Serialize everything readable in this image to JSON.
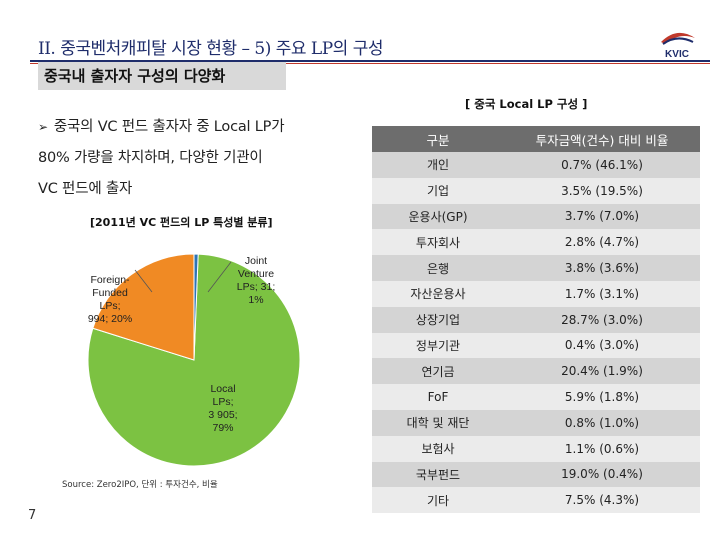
{
  "header": {
    "title": "II. 중국벤처캐피탈 시장 현황 – 5) 주요 LP의 구성",
    "logo_text": "KVIC",
    "subtitle": "중국내 출자자 구성의 다양화"
  },
  "bullet": {
    "line1": "중국의 VC 펀드 출자자 중 Local LP가",
    "line2": "80% 가량을 차지하며, 다양한 기관이",
    "line3": "VC 펀드에 출자"
  },
  "chart_data": {
    "type": "pie",
    "title": "[2011년 VC 펀드의 LP 특성별 분류]",
    "slices": [
      {
        "name": "Local LPs",
        "value": 3905,
        "percent": 79,
        "label_lines": [
          "Local",
          "LPs;",
          "3 905;",
          "79%"
        ],
        "color": "#7cc242"
      },
      {
        "name": "Foreign-Funded LPs",
        "value": 994,
        "percent": 20,
        "label_lines": [
          "Foreign-",
          "Funded",
          "LPs;",
          "994; 20%"
        ],
        "color": "#f08a24"
      },
      {
        "name": "Joint Venture LPs",
        "value": 31,
        "percent": 1,
        "label_lines": [
          "Joint",
          "Venture",
          "LPs;  31;",
          "1%"
        ],
        "color": "#2e74b5"
      }
    ]
  },
  "source": "Source: Zero2IPO,  단위 : 투자건수, 비율",
  "page_number": "7",
  "table": {
    "caption": "[ 중국 Local LP 구성 ]",
    "headers": [
      "구분",
      "투자금액(건수) 대비 비율"
    ],
    "rows": [
      [
        "개인",
        "0.7% (46.1%)"
      ],
      [
        "기업",
        "3.5% (19.5%)"
      ],
      [
        "운용사(GP)",
        "3.7% (7.0%)"
      ],
      [
        "투자회사",
        "2.8% (4.7%)"
      ],
      [
        "은행",
        "3.8% (3.6%)"
      ],
      [
        "자산운용사",
        "1.7% (3.1%)"
      ],
      [
        "상장기업",
        "28.7% (3.0%)"
      ],
      [
        "정부기관",
        "0.4% (3.0%)"
      ],
      [
        "연기금",
        "20.4% (1.9%)"
      ],
      [
        "FoF",
        "5.9% (1.8%)"
      ],
      [
        "대학 및 재단",
        "0.8% (1.0%)"
      ],
      [
        "보험사",
        "1.1% (0.6%)"
      ],
      [
        "국부펀드",
        "19.0% (0.4%)"
      ],
      [
        "기타",
        "7.5% (4.3%)"
      ]
    ]
  }
}
